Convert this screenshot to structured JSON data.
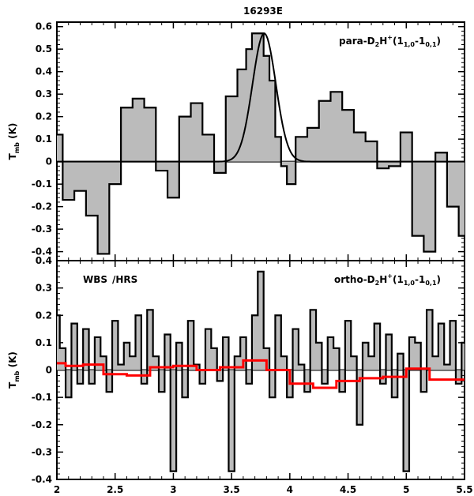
{
  "chart_data": {
    "title": "16293E",
    "xlim": [
      2,
      5.5
    ],
    "x_ticks": [
      "2",
      "2.5",
      "3",
      "3.5",
      "4",
      "4.5",
      "5",
      "5.5"
    ],
    "panels": [
      {
        "id": "top",
        "type": "histogram-step",
        "ylabel_main": "T",
        "ylabel_sub": "mb",
        "ylabel_unit": " (K)",
        "ylim": [
          -0.44,
          0.62
        ],
        "y_ticks": [
          "-0.4",
          "-0.3",
          "-0.2",
          "-0.1",
          "0",
          "0.1",
          "0.2",
          "0.3",
          "0.4",
          "0.5",
          "0.6"
        ],
        "label_main": "para-D",
        "label_parts": [
          "2",
          "H",
          "+",
          "(1",
          "1,0",
          "-1",
          "0,1",
          ")"
        ],
        "fill_color": "#bbbbbb",
        "line_color": "#000000",
        "gauss_color": "#000000",
        "gauss": {
          "amplitude": 0.57,
          "center": 3.78,
          "sigma": 0.1
        },
        "series": [
          {
            "name": "",
            "x": [
              2.0,
              2.1,
              2.2,
              2.3,
              2.4,
              2.5,
              2.6,
              2.7,
              2.8,
              2.9,
              3.0,
              3.1,
              3.2,
              3.3,
              3.4,
              3.5,
              3.6,
              3.65,
              3.7,
              3.75,
              3.8,
              3.85,
              3.9,
              3.95,
              4.0,
              4.1,
              4.2,
              4.3,
              4.4,
              4.5,
              4.6,
              4.7,
              4.8,
              4.9,
              5.0,
              5.1,
              5.2,
              5.3,
              5.4,
              5.5
            ],
            "y": [
              0.12,
              -0.17,
              -0.13,
              -0.24,
              -0.41,
              -0.1,
              0.24,
              0.28,
              0.24,
              -0.04,
              -0.16,
              0.2,
              0.26,
              0.12,
              -0.05,
              0.29,
              0.41,
              0.5,
              0.57,
              0.57,
              0.47,
              0.36,
              0.11,
              -0.02,
              -0.1,
              0.11,
              0.15,
              0.27,
              0.31,
              0.23,
              0.13,
              0.09,
              -0.03,
              -0.02,
              0.13,
              -0.33,
              -0.4,
              0.04,
              -0.2,
              -0.33
            ]
          }
        ]
      },
      {
        "id": "bottom",
        "type": "histogram-step",
        "ylabel_main": "T",
        "ylabel_sub": "mb",
        "ylabel_unit": " (K)",
        "ylim": [
          -0.4,
          0.4
        ],
        "y_ticks": [
          "-0.4",
          "-0.3",
          "-0.2",
          "-0.1",
          "0",
          "0.1",
          "0.2",
          "0.3",
          "0.4"
        ],
        "label_main": "ortho-D",
        "label_parts": [
          "2",
          "H",
          "+",
          "(1",
          "1,0",
          "-1",
          "0,1",
          ")"
        ],
        "legend_wbs": "WBS",
        "legend_hrs": " /HRS",
        "fill_color": "#bbbbbb",
        "line_color": "#000000",
        "wbs_color": "#ff0000",
        "series": [
          {
            "name": "WBS",
            "x": [
              2.0,
              2.15,
              2.3,
              2.5,
              2.7,
              2.9,
              3.1,
              3.3,
              3.5,
              3.7,
              3.9,
              4.1,
              4.3,
              4.5,
              4.7,
              4.9,
              5.1,
              5.3,
              5.5
            ],
            "y": [
              0.025,
              0.015,
              0.02,
              -0.015,
              -0.02,
              0.01,
              0.015,
              0.0,
              0.01,
              0.035,
              0.0,
              -0.05,
              -0.065,
              -0.04,
              -0.03,
              -0.025,
              0.005,
              -0.035,
              -0.035
            ]
          },
          {
            "name": "HRS",
            "x": [
              2.0,
              2.05,
              2.1,
              2.15,
              2.2,
              2.25,
              2.3,
              2.35,
              2.4,
              2.45,
              2.5,
              2.55,
              2.6,
              2.65,
              2.7,
              2.75,
              2.8,
              2.85,
              2.9,
              2.95,
              3.0,
              3.05,
              3.1,
              3.15,
              3.2,
              3.25,
              3.3,
              3.35,
              3.4,
              3.45,
              3.5,
              3.55,
              3.6,
              3.65,
              3.7,
              3.75,
              3.8,
              3.85,
              3.9,
              3.95,
              4.0,
              4.05,
              4.1,
              4.15,
              4.2,
              4.25,
              4.3,
              4.35,
              4.4,
              4.45,
              4.5,
              4.55,
              4.6,
              4.65,
              4.7,
              4.75,
              4.8,
              4.85,
              4.9,
              4.95,
              5.0,
              5.05,
              5.1,
              5.15,
              5.2,
              5.25,
              5.3,
              5.35,
              5.4,
              5.45,
              5.5
            ],
            "y": [
              0.2,
              0.08,
              -0.1,
              0.17,
              -0.05,
              0.15,
              -0.05,
              0.12,
              0.05,
              -0.08,
              0.18,
              0.02,
              0.1,
              0.05,
              0.2,
              -0.05,
              0.22,
              0.05,
              -0.08,
              0.13,
              -0.37,
              0.1,
              -0.1,
              0.18,
              0.02,
              -0.05,
              0.15,
              0.08,
              -0.04,
              0.12,
              -0.37,
              0.05,
              0.12,
              -0.05,
              0.2,
              0.36,
              0.08,
              -0.1,
              0.2,
              0.05,
              -0.1,
              0.15,
              0.02,
              -0.08,
              0.22,
              0.1,
              -0.05,
              0.12,
              0.08,
              -0.08,
              0.18,
              0.05,
              -0.2,
              0.1,
              0.05,
              0.17,
              -0.05,
              0.13,
              -0.1,
              0.06,
              -0.37,
              0.12,
              0.1,
              -0.08,
              0.22,
              0.05,
              0.17,
              0.02,
              0.18,
              -0.05,
              0.1
            ]
          }
        ]
      }
    ]
  }
}
